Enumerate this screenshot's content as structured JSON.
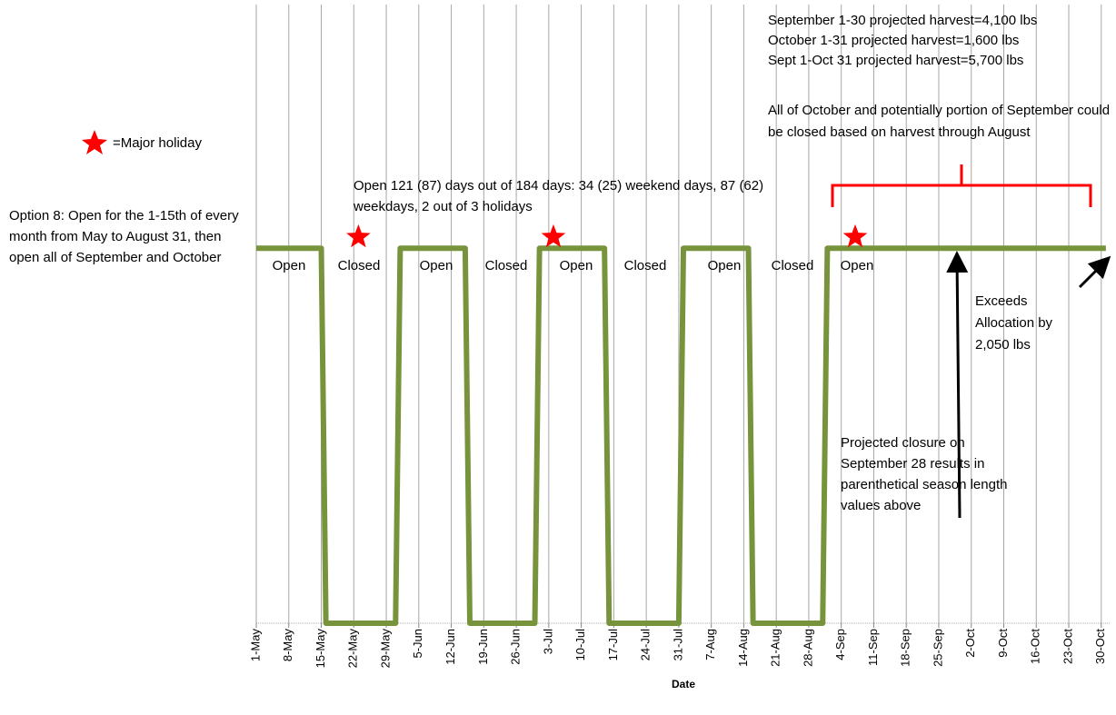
{
  "chart_data": {
    "type": "line",
    "x_label": "Date",
    "xlim": [
      0,
      184
    ],
    "ylim": [
      0,
      1.65
    ],
    "xticks": [
      {
        "value": 0,
        "label": "1-May"
      },
      {
        "value": 7,
        "label": "8-May"
      },
      {
        "value": 14,
        "label": "15-May"
      },
      {
        "value": 21,
        "label": "22-May"
      },
      {
        "value": 28,
        "label": "29-May"
      },
      {
        "value": 35,
        "label": "5-Jun"
      },
      {
        "value": 42,
        "label": "12-Jun"
      },
      {
        "value": 49,
        "label": "19-Jun"
      },
      {
        "value": 56,
        "label": "26-Jun"
      },
      {
        "value": 63,
        "label": "3-Jul"
      },
      {
        "value": 70,
        "label": "10-Jul"
      },
      {
        "value": 77,
        "label": "17-Jul"
      },
      {
        "value": 84,
        "label": "24-Jul"
      },
      {
        "value": 91,
        "label": "31-Jul"
      },
      {
        "value": 98,
        "label": "7-Aug"
      },
      {
        "value": 105,
        "label": "14-Aug"
      },
      {
        "value": 112,
        "label": "21-Aug"
      },
      {
        "value": 119,
        "label": "28-Aug"
      },
      {
        "value": 126,
        "label": "4-Sep"
      },
      {
        "value": 133,
        "label": "11-Sep"
      },
      {
        "value": 140,
        "label": "18-Sep"
      },
      {
        "value": 147,
        "label": "25-Sep"
      },
      {
        "value": 154,
        "label": "2-Oct"
      },
      {
        "value": 161,
        "label": "9-Oct"
      },
      {
        "value": 168,
        "label": "16-Oct"
      },
      {
        "value": 175,
        "label": "23-Oct"
      },
      {
        "value": 182,
        "label": "30-Oct"
      }
    ],
    "grid": true,
    "series": [
      {
        "color": "#77933c",
        "x": [
          0,
          14,
          15,
          30,
          31,
          45,
          46,
          60,
          61,
          75,
          76,
          91,
          92,
          106,
          107,
          122,
          123,
          183
        ],
        "values": [
          1,
          1,
          0,
          0,
          1,
          1,
          0,
          0,
          1,
          1,
          0,
          0,
          1,
          1,
          0,
          0,
          1,
          1
        ]
      }
    ],
    "holidays": {
      "color": "#ff0000",
      "x": [
        22,
        64,
        129
      ],
      "values": [
        1.03,
        1.03,
        1.03
      ]
    },
    "legend_label": "=Major holiday",
    "period_labels": [
      "Open",
      "Closed",
      "Open",
      "Closed",
      "Open",
      "Closed",
      "Open",
      "Closed",
      "Open"
    ],
    "annotations": [
      "Option 8: Open for the 1-15th of every month from May to August 31, then open all of September and October",
      "September 1-30 projected harvest=4,100 lbs",
      "October 1-31 projected harvest=1,600 lbs",
      "Sept 1-Oct 31 projected harvest=5,700 lbs",
      "All of October and potentially portion of September could be closed based on harvest through August",
      "Open 121 (87) days out of 184 days:  34 (25) weekend days, 87 (62) weekdays, 2 out of 3 holidays",
      "Exceeds Allocation by 2,050 lbs",
      "Projected closure on September 28 results in parenthetical season length values above"
    ]
  }
}
